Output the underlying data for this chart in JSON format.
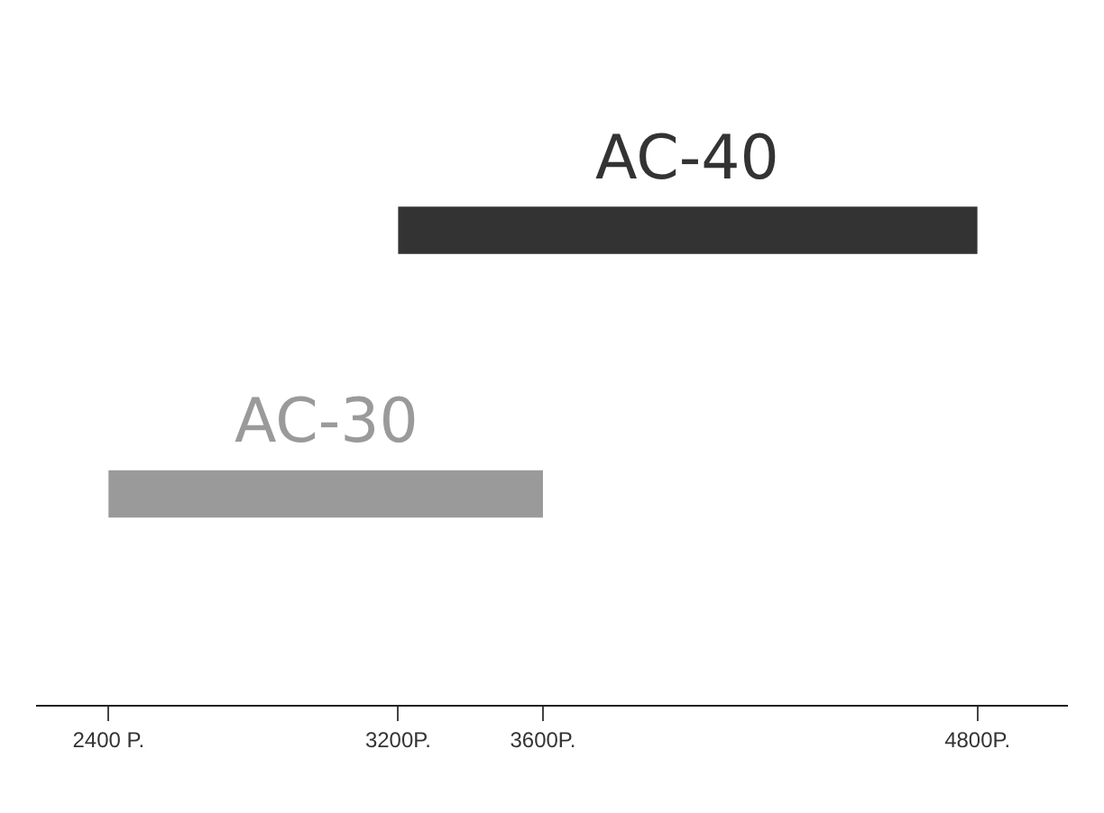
{
  "chart_data": {
    "type": "bar",
    "orientation": "horizontal",
    "categories": [
      "AC-40",
      "AC-30"
    ],
    "base": [
      3200,
      2400
    ],
    "values": [
      1600,
      1200
    ],
    "colors": [
      "#333333",
      "#9a9a9a"
    ],
    "xlim": [
      2200,
      5050
    ],
    "xticks": [
      {
        "value": 2400,
        "label": "2400 P."
      },
      {
        "value": 3200,
        "label": "3200P."
      },
      {
        "value": 3600,
        "label": "3600P."
      },
      {
        "value": 4800,
        "label": "4800P."
      }
    ],
    "tick_labels": "x",
    "grid": false
  }
}
